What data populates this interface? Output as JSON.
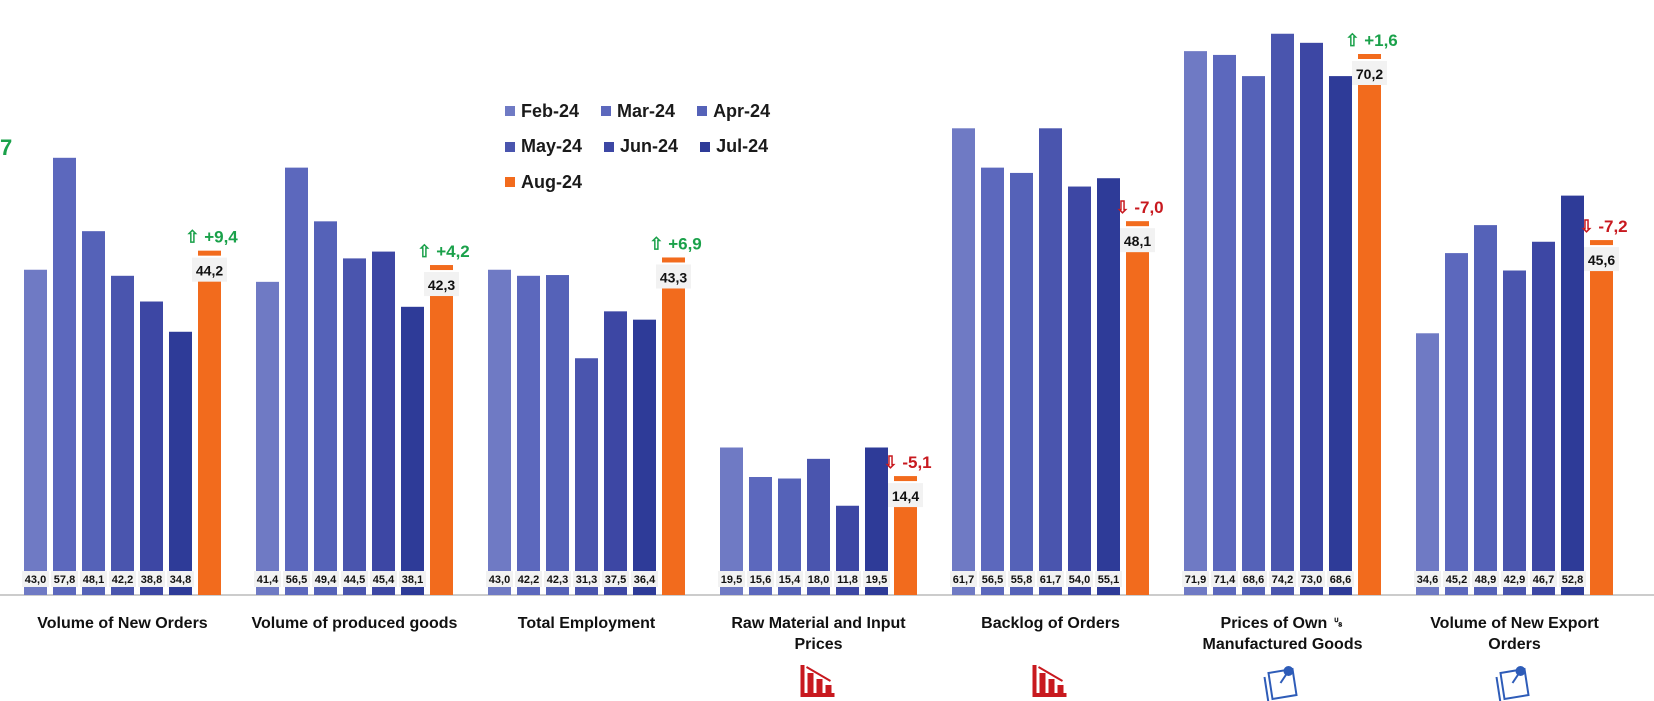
{
  "edge_label": "7",
  "colors": {
    "series": [
      "#6f7ac4",
      "#5c68bd",
      "#5562b8",
      "#4a55ae",
      "#3d47a4",
      "#2e3b98",
      "#f26b1d"
    ],
    "up": "#1aa14a",
    "down": "#c8191f",
    "axis": "#999999",
    "label_bg": "#f2f2f2"
  },
  "legend": [
    "Feb-24",
    "Mar-24",
    "Apr-24",
    "May-24",
    "Jun-24",
    "Jul-24",
    "Aug-24"
  ],
  "chart_data": {
    "type": "bar",
    "ylim": [
      0,
      78
    ],
    "series": [
      {
        "name": "Feb-24",
        "values": [
          43.0,
          41.4,
          43.0,
          19.5,
          61.7,
          71.9,
          34.6
        ]
      },
      {
        "name": "Mar-24",
        "values": [
          57.8,
          56.5,
          42.2,
          15.6,
          56.5,
          71.4,
          45.2
        ]
      },
      {
        "name": "Apr-24",
        "values": [
          48.1,
          49.4,
          42.3,
          15.4,
          55.8,
          68.6,
          48.9
        ]
      },
      {
        "name": "May-24",
        "values": [
          42.2,
          44.5,
          31.3,
          18.0,
          61.7,
          74.2,
          42.9
        ]
      },
      {
        "name": "Jun-24",
        "values": [
          38.8,
          45.4,
          37.5,
          11.8,
          54.0,
          73.0,
          46.7
        ]
      },
      {
        "name": "Jul-24",
        "values": [
          34.8,
          38.1,
          36.4,
          19.5,
          55.1,
          68.6,
          52.8
        ]
      },
      {
        "name": "Aug-24",
        "values": [
          44.2,
          42.3,
          43.3,
          14.4,
          48.1,
          70.2,
          45.6
        ]
      }
    ],
    "groups": [
      {
        "category": "Volume of New Orders",
        "labels": [
          "43,0",
          "57,8",
          "48,1",
          "42,2",
          "38,8",
          "34,8"
        ],
        "last_label": "44,2",
        "change": "+9,4",
        "direction": "up",
        "icon": ""
      },
      {
        "category": "Volume of produced goods",
        "labels": [
          "41,4",
          "56,5",
          "49,4",
          "44,5",
          "45,4",
          "38,1"
        ],
        "last_label": "42,3",
        "change": "+4,2",
        "direction": "up",
        "icon": ""
      },
      {
        "category": "Total Employment",
        "labels": [
          "43,0",
          "42,2",
          "42,3",
          "31,3",
          "37,5",
          "36,4"
        ],
        "last_label": "43,3",
        "change": "+6,9",
        "direction": "up",
        "icon": ""
      },
      {
        "category": "Raw Material and Input Prices",
        "labels": [
          "19,5",
          "15,6",
          "15,4",
          "18,0",
          "11,8",
          "19,5"
        ],
        "last_label": "14,4",
        "change": "-5,1",
        "direction": "down",
        "icon": "decline-chart-icon"
      },
      {
        "category": "Backlog of Orders",
        "labels": [
          "61,7",
          "56,5",
          "55,8",
          "61,7",
          "54,0",
          "55,1"
        ],
        "last_label": "48,1",
        "change": "-7,0",
        "direction": "down",
        "icon": "decline-chart-icon"
      },
      {
        "category": "Prices of Own ␟ Manufactured Goods",
        "labels": [
          "71,9",
          "71,4",
          "68,6",
          "74,2",
          "73,0",
          "68,6"
        ],
        "last_label": "70,2",
        "change": "+1,6",
        "direction": "up",
        "icon": "pinned-note-icon"
      },
      {
        "category": "Volume of New Export Orders",
        "labels": [
          "34,6",
          "45,2",
          "48,9",
          "42,9",
          "46,7",
          "52,8"
        ],
        "last_label": "45,6",
        "change": "-7,2",
        "direction": "down",
        "icon": "pinned-note-icon"
      }
    ]
  }
}
